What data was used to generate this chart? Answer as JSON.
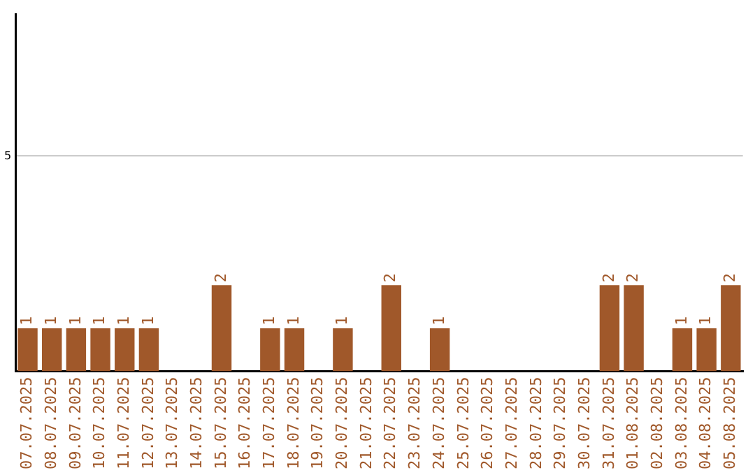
{
  "chart_data": {
    "type": "bar",
    "categories": [
      "07.07.2025",
      "08.07.2025",
      "09.07.2025",
      "10.07.2025",
      "11.07.2025",
      "12.07.2025",
      "13.07.2025",
      "14.07.2025",
      "15.07.2025",
      "16.07.2025",
      "17.07.2025",
      "18.07.2025",
      "19.07.2025",
      "20.07.2025",
      "21.07.2025",
      "22.07.2025",
      "23.07.2025",
      "24.07.2025",
      "25.07.2025",
      "26.07.2025",
      "27.07.2025",
      "28.07.2025",
      "29.07.2025",
      "30.07.2025",
      "31.07.2025",
      "01.08.2025",
      "02.08.2025",
      "03.08.2025",
      "04.08.2025",
      "05.08.2025"
    ],
    "values": [
      1,
      1,
      1,
      1,
      1,
      1,
      0,
      0,
      2,
      0,
      1,
      1,
      0,
      1,
      0,
      2,
      0,
      1,
      0,
      0,
      0,
      0,
      0,
      0,
      2,
      2,
      0,
      1,
      1,
      2
    ],
    "value_labels": [
      "1",
      "1",
      "1",
      "1",
      "1",
      "1",
      null,
      null,
      "2",
      null,
      "1",
      "1",
      null,
      "1",
      null,
      "2",
      null,
      "1",
      null,
      null,
      null,
      null,
      null,
      null,
      "2",
      "2",
      null,
      "1",
      "1",
      "2"
    ],
    "color": "#a0582a",
    "ylim": [
      0,
      8.3
    ],
    "yticks": [
      5
    ],
    "grid": "y",
    "legend": false
  }
}
